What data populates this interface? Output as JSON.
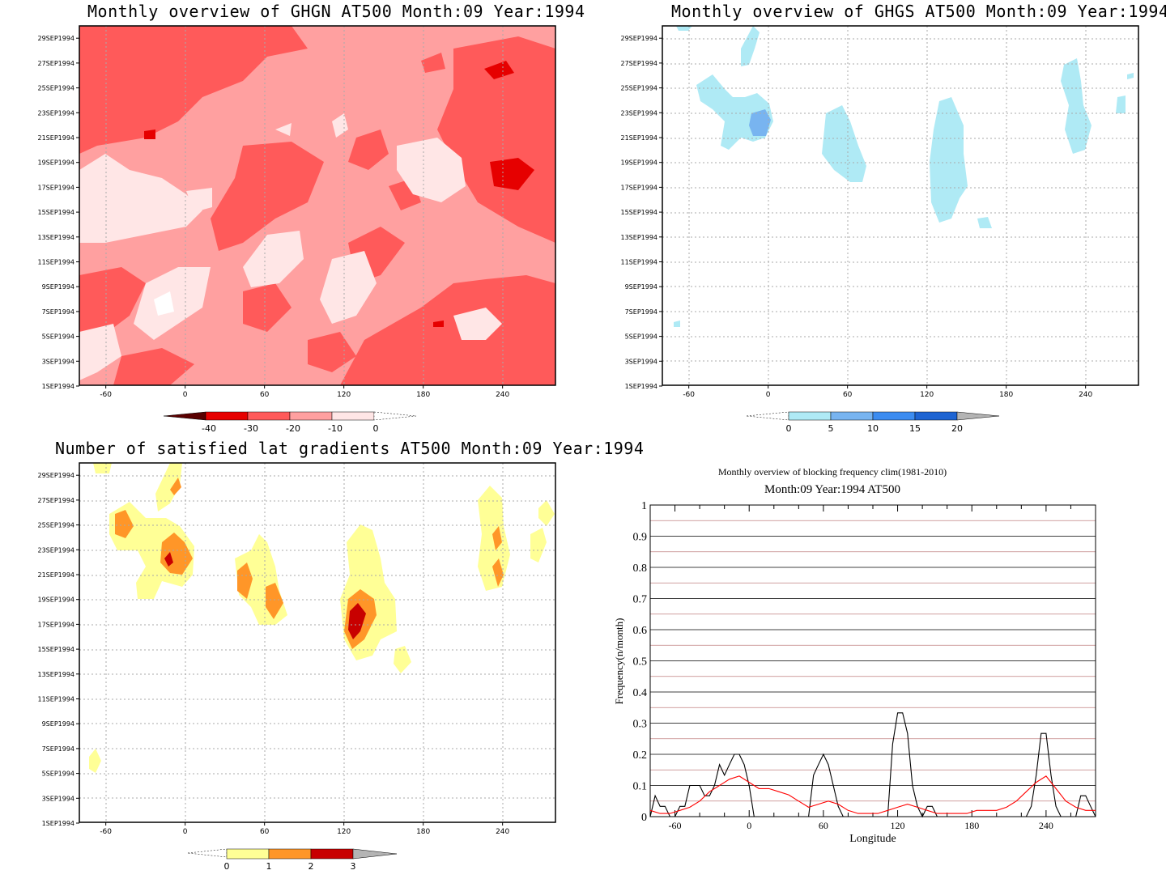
{
  "panels": {
    "ghgn": {
      "title": "Monthly overview of GHGN AT500 Month:09 Year:1994",
      "x_ticks": [
        "-60",
        "0",
        "60",
        "120",
        "180",
        "240"
      ],
      "y_ticks": [
        "1SEP1994",
        "3SEP1994",
        "5SEP1994",
        "7SEP1994",
        "9SEP1994",
        "11SEP1994",
        "13SEP1994",
        "15SEP1994",
        "17SEP1994",
        "19SEP1994",
        "21SEP1994",
        "23SEP1994",
        "25SEP1994",
        "27SEP1994",
        "29SEP1994"
      ],
      "colorbar": {
        "labels": [
          "-40",
          "-30",
          "-20",
          "-10",
          "0"
        ],
        "colors": [
          "#5a0000",
          "#e60000",
          "#ff5a5a",
          "#ffa0a0",
          "#ffe6e6",
          "#ffffff"
        ]
      }
    },
    "ghgs": {
      "title": "Monthly overview of GHGS AT500 Month:09 Year:1994",
      "x_ticks": [
        "-60",
        "0",
        "60",
        "120",
        "180",
        "240"
      ],
      "y_ticks": [
        "1SEP1994",
        "3SEP1994",
        "5SEP1994",
        "7SEP1994",
        "9SEP1994",
        "11SEP1994",
        "13SEP1994",
        "15SEP1994",
        "17SEP1994",
        "19SEP1994",
        "21SEP1994",
        "23SEP1994",
        "25SEP1994",
        "27SEP1994",
        "29SEP1994"
      ],
      "colorbar": {
        "labels": [
          "0",
          "5",
          "10",
          "15",
          "20"
        ],
        "colors": [
          "#ffffff",
          "#afeaf5",
          "#78b4f0",
          "#3c8cf0",
          "#1e64d2",
          "#b4b4b4"
        ]
      }
    },
    "grad": {
      "title": "Number of satisfied lat gradients AT500 Month:09 Year:1994",
      "x_ticks": [
        "-60",
        "0",
        "60",
        "120",
        "180",
        "240"
      ],
      "y_ticks": [
        "1SEP1994",
        "3SEP1994",
        "5SEP1994",
        "7SEP1994",
        "9SEP1994",
        "11SEP1994",
        "13SEP1994",
        "15SEP1994",
        "17SEP1994",
        "19SEP1994",
        "21SEP1994",
        "23SEP1994",
        "25SEP1994",
        "27SEP1994",
        "29SEP1994"
      ],
      "colorbar": {
        "labels": [
          "0",
          "1",
          "2",
          "3"
        ],
        "colors": [
          "#ffffff",
          "#ffff96",
          "#ff9628",
          "#c80000",
          "#b4b4b4"
        ]
      }
    },
    "freq": {
      "title_line1": "Monthly overview of blocking frequency clim(1981-2010)",
      "title_line2": "Month:09 Year:1994  AT500"
    }
  },
  "chart_data": [
    {
      "type": "heatmap",
      "title": "Monthly overview of GHGN AT500 Month:09 Year:1994",
      "x_ticks": [
        -60,
        0,
        60,
        120,
        180,
        240
      ],
      "xlim": [
        -80,
        280
      ],
      "ylim_days": [
        1,
        30
      ],
      "levels": [
        -40,
        -30,
        -20,
        -10,
        0
      ],
      "dominant_categories": [
        "-20 to -10",
        "-10 to 0",
        "-30 to -20"
      ],
      "grid": true
    },
    {
      "type": "heatmap",
      "title": "Monthly overview of GHGS AT500 Month:09 Year:1994",
      "x_ticks": [
        -60,
        0,
        60,
        120,
        180,
        240
      ],
      "xlim": [
        -80,
        280
      ],
      "ylim_days": [
        1,
        30
      ],
      "levels": [
        0,
        5,
        10,
        15,
        20
      ],
      "grid": true
    },
    {
      "type": "heatmap",
      "title": "Number of satisfied lat gradients AT500 Month:09 Year:1994",
      "x_ticks": [
        -60,
        0,
        60,
        120,
        180,
        240
      ],
      "xlim": [
        -80,
        280
      ],
      "ylim_days": [
        1,
        30
      ],
      "levels": [
        0,
        1,
        2,
        3
      ],
      "grid": true
    },
    {
      "type": "line",
      "title": "Monthly overview of blocking frequency clim(1981-2010)",
      "subtitle": "Month:09 Year:1994  AT500",
      "xlabel": "Longitude",
      "ylabel": "Frequency(n/month)",
      "xlim": [
        -80,
        280
      ],
      "ylim": [
        0,
        1
      ],
      "x_ticks": [
        -60,
        0,
        60,
        120,
        180,
        240
      ],
      "y_ticks": [
        0,
        0.1,
        0.2,
        0.3,
        0.4,
        0.5,
        0.6,
        0.7,
        0.8,
        0.9,
        1
      ],
      "series": [
        {
          "color": "#000000",
          "x": [
            -80,
            -76,
            -72,
            -68,
            -64,
            -60,
            -56,
            -52,
            -48,
            -44,
            -40,
            -36,
            -32,
            -28,
            -24,
            -20,
            -16,
            -12,
            -8,
            -4,
            0,
            4,
            8,
            12,
            16,
            20,
            24,
            28,
            32,
            36,
            40,
            44,
            48,
            52,
            56,
            60,
            64,
            68,
            72,
            76,
            80,
            84,
            88,
            92,
            96,
            100,
            104,
            108,
            112,
            116,
            120,
            124,
            128,
            132,
            136,
            140,
            144,
            148,
            152,
            156,
            160,
            164,
            168,
            172,
            176,
            180,
            184,
            188,
            192,
            196,
            200,
            204,
            208,
            212,
            216,
            220,
            224,
            228,
            232,
            236,
            240,
            244,
            248,
            252,
            256,
            260,
            264,
            268,
            272,
            276,
            280
          ],
          "y": [
            0.0,
            0.067,
            0.033,
            0.033,
            0.0,
            0.0,
            0.033,
            0.033,
            0.1,
            0.1,
            0.1,
            0.067,
            0.067,
            0.1,
            0.167,
            0.133,
            0.167,
            0.2,
            0.2,
            0.167,
            0.1,
            0.0,
            0.0,
            0.0,
            0.0,
            0.0,
            0.0,
            0.0,
            0.0,
            0.0,
            0.0,
            0.0,
            0.0,
            0.133,
            0.167,
            0.2,
            0.167,
            0.1,
            0.033,
            0.0,
            0.0,
            0.0,
            0.0,
            0.0,
            0.0,
            0.0,
            0.0,
            0.0,
            0.0,
            0.233,
            0.333,
            0.333,
            0.267,
            0.1,
            0.033,
            0.0,
            0.033,
            0.033,
            0.0,
            0.0,
            0.0,
            0.0,
            0.0,
            0.0,
            0.0,
            0.0,
            0.0,
            0.0,
            0.0,
            0.0,
            0.0,
            0.0,
            0.0,
            0.0,
            0.0,
            0.0,
            0.0,
            0.033,
            0.133,
            0.267,
            0.267,
            0.133,
            0.033,
            0.0,
            0.0,
            0.0,
            0.0,
            0.067,
            0.067,
            0.033,
            0.0
          ]
        },
        {
          "color": "#ff0000",
          "x": [
            -80,
            -72,
            -64,
            -56,
            -48,
            -40,
            -32,
            -24,
            -16,
            -8,
            0,
            8,
            16,
            24,
            32,
            40,
            48,
            56,
            64,
            72,
            80,
            88,
            96,
            104,
            112,
            120,
            128,
            136,
            144,
            152,
            160,
            168,
            176,
            184,
            192,
            200,
            208,
            216,
            224,
            232,
            240,
            248,
            256,
            264,
            272,
            280
          ],
          "y": [
            0.02,
            0.01,
            0.01,
            0.02,
            0.03,
            0.05,
            0.08,
            0.1,
            0.12,
            0.13,
            0.11,
            0.09,
            0.09,
            0.08,
            0.07,
            0.05,
            0.03,
            0.04,
            0.05,
            0.04,
            0.02,
            0.01,
            0.01,
            0.01,
            0.02,
            0.03,
            0.04,
            0.03,
            0.02,
            0.01,
            0.01,
            0.01,
            0.01,
            0.02,
            0.02,
            0.02,
            0.03,
            0.05,
            0.08,
            0.11,
            0.13,
            0.09,
            0.05,
            0.03,
            0.02,
            0.02
          ]
        }
      ],
      "reference_lines": [
        0.05,
        0.15,
        0.25,
        0.35,
        0.45,
        0.55,
        0.65,
        0.75,
        0.85,
        0.95
      ],
      "grid": true
    }
  ]
}
